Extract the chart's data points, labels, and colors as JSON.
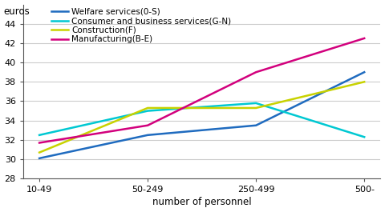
{
  "x_labels": [
    "10-49",
    "50-249",
    "250-499",
    "500-"
  ],
  "x_positions": [
    0,
    1,
    2,
    3
  ],
  "series": [
    {
      "label": "Welfare services(0-S)",
      "color": "#1f6bbf",
      "values": [
        30.1,
        32.5,
        33.5,
        39.0
      ]
    },
    {
      "label": "Consumer and business services(G-N)",
      "color": "#00c8d2",
      "values": [
        32.5,
        35.0,
        35.8,
        32.3
      ]
    },
    {
      "label": "Construction(F)",
      "color": "#c8d200",
      "values": [
        30.7,
        35.3,
        35.3,
        38.0
      ]
    },
    {
      "label": "Manufacturing(B-E)",
      "color": "#d2007d",
      "values": [
        31.7,
        33.5,
        39.0,
        42.5
      ]
    }
  ],
  "euros_label": "euros",
  "xlabel": "number of personnel",
  "ylim": [
    28,
    46
  ],
  "yticks": [
    28,
    30,
    32,
    34,
    36,
    38,
    40,
    42,
    44
  ],
  "legend_fontsize": 7.5,
  "axis_fontsize": 8.5,
  "tick_fontsize": 8,
  "line_width": 1.8,
  "background_color": "#ffffff",
  "grid_color": "#cccccc"
}
